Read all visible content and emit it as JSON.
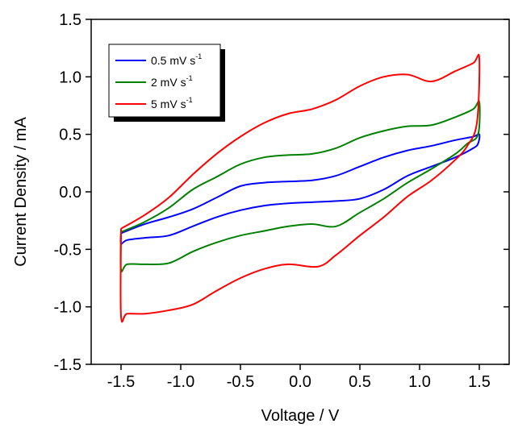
{
  "chart_data": {
    "type": "line",
    "xlabel": "Voltage / V",
    "ylabel": "Current Density / mA",
    "xlim": [
      -1.75,
      1.75
    ],
    "ylim": [
      -1.5,
      1.5
    ],
    "x_ticks": [
      -1.5,
      -1.0,
      -0.5,
      0.0,
      0.5,
      1.0,
      1.5
    ],
    "x_tick_labels": [
      "-1.5",
      "-1.0",
      "-0.5",
      "0.0",
      "0.5",
      "1.0",
      "1.5"
    ],
    "y_ticks": [
      -1.5,
      -1.0,
      -0.5,
      0.0,
      0.5,
      1.0,
      1.5
    ],
    "y_tick_labels": [
      "-1.5",
      "-1.0",
      "-0.5",
      "0.0",
      "0.5",
      "1.0",
      "1.5"
    ],
    "grid": false,
    "legend_placement": "top-left",
    "series": [
      {
        "name": "0.5 mV s-1",
        "label_main": "0.5 mV s",
        "label_sup": "-1",
        "color": "#0000ff",
        "x": [
          -1.5,
          -1.3,
          -1.1,
          -0.9,
          -0.7,
          -0.5,
          -0.3,
          -0.1,
          0.1,
          0.3,
          0.5,
          0.7,
          0.9,
          1.1,
          1.3,
          1.45,
          1.5,
          1.49,
          1.45,
          1.3,
          1.1,
          0.9,
          0.7,
          0.5,
          0.3,
          0.1,
          -0.1,
          -0.3,
          -0.5,
          -0.7,
          -0.9,
          -1.1,
          -1.3,
          -1.45,
          -1.5,
          -1.5
        ],
        "y": [
          -0.36,
          -0.28,
          -0.22,
          -0.15,
          -0.05,
          0.05,
          0.08,
          0.09,
          0.1,
          0.14,
          0.22,
          0.3,
          0.36,
          0.4,
          0.45,
          0.48,
          0.5,
          0.42,
          0.38,
          0.3,
          0.22,
          0.14,
          0.02,
          -0.06,
          -0.08,
          -0.09,
          -0.1,
          -0.12,
          -0.16,
          -0.22,
          -0.3,
          -0.38,
          -0.4,
          -0.42,
          -0.45,
          -0.36
        ]
      },
      {
        "name": "2 mV s-1",
        "label_main": "2  mV s",
        "label_sup": "-1",
        "color": "#008000",
        "x": [
          -1.5,
          -1.3,
          -1.1,
          -0.9,
          -0.7,
          -0.5,
          -0.3,
          -0.1,
          0.1,
          0.3,
          0.5,
          0.7,
          0.9,
          1.1,
          1.3,
          1.45,
          1.5,
          1.49,
          1.4,
          1.3,
          1.1,
          0.9,
          0.7,
          0.5,
          0.3,
          0.1,
          -0.1,
          -0.3,
          -0.5,
          -0.7,
          -0.9,
          -1.1,
          -1.3,
          -1.45,
          -1.5,
          -1.5
        ],
        "y": [
          -0.35,
          -0.26,
          -0.14,
          0.02,
          0.13,
          0.24,
          0.3,
          0.32,
          0.33,
          0.38,
          0.47,
          0.53,
          0.57,
          0.58,
          0.65,
          0.72,
          0.78,
          0.5,
          0.42,
          0.33,
          0.2,
          0.08,
          -0.06,
          -0.18,
          -0.3,
          -0.28,
          -0.3,
          -0.34,
          -0.38,
          -0.44,
          -0.52,
          -0.62,
          -0.63,
          -0.63,
          -0.68,
          -0.35
        ]
      },
      {
        "name": "5 mV s-1",
        "label_main": "5  mV s",
        "label_sup": "-1",
        "color": "#ff0000",
        "x": [
          -1.5,
          -1.3,
          -1.1,
          -0.9,
          -0.7,
          -0.5,
          -0.3,
          -0.1,
          0.1,
          0.3,
          0.5,
          0.7,
          0.9,
          1.1,
          1.3,
          1.45,
          1.5,
          1.48,
          1.4,
          1.3,
          1.1,
          0.9,
          0.7,
          0.5,
          0.3,
          0.15,
          -0.1,
          -0.3,
          -0.5,
          -0.7,
          -0.9,
          -1.1,
          -1.3,
          -1.45,
          -1.5,
          -1.5
        ],
        "y": [
          -0.32,
          -0.2,
          -0.05,
          0.15,
          0.33,
          0.48,
          0.6,
          0.68,
          0.72,
          0.8,
          0.92,
          1.0,
          1.02,
          0.96,
          1.05,
          1.12,
          1.16,
          0.6,
          0.4,
          0.28,
          0.1,
          -0.04,
          -0.22,
          -0.38,
          -0.55,
          -0.65,
          -0.63,
          -0.67,
          -0.75,
          -0.86,
          -0.98,
          -1.03,
          -1.06,
          -1.06,
          -1.08,
          -0.32
        ]
      }
    ]
  }
}
